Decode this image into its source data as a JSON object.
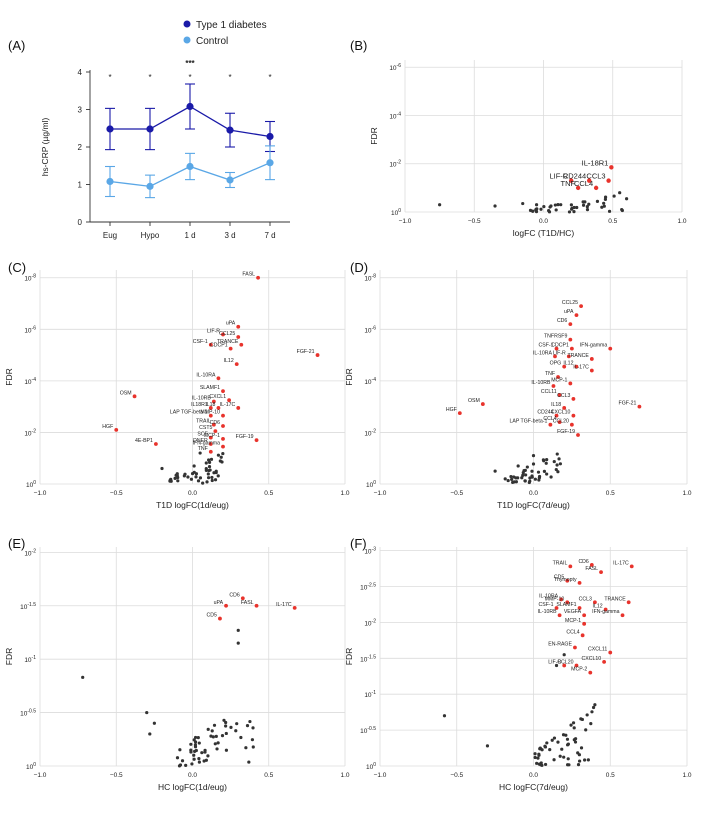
{
  "chart_data": [
    {
      "panel": "(A)",
      "type": "line",
      "ylabel": "hs-CRP (µg/ml)",
      "categories": [
        "Eug",
        "Hypo",
        "1 d",
        "3 d",
        "7 d"
      ],
      "ylim": [
        0,
        4
      ],
      "yticks": [
        "0",
        "1",
        "2",
        "3",
        "4"
      ],
      "series": [
        {
          "name": "Type 1 diabetes",
          "color": "#1a1aa8",
          "values": [
            2.48,
            2.48,
            3.08,
            2.45,
            2.28
          ],
          "err": [
            0.55,
            0.55,
            0.6,
            0.45,
            0.4
          ]
        },
        {
          "name": "Control",
          "color": "#5aa7e6",
          "values": [
            1.08,
            0.95,
            1.48,
            1.12,
            1.58
          ],
          "err": [
            0.4,
            0.3,
            0.35,
            0.2,
            0.45
          ]
        }
      ],
      "significance": [
        {
          "category": "1 d",
          "text": "***",
          "color": "#1a1aa8"
        }
      ],
      "star_markers": [
        "*",
        "*",
        "*",
        "*",
        "*"
      ]
    },
    {
      "panel": "(B)",
      "type": "scatter",
      "xlabel": "logFC (T1D/HC)",
      "ylabel": "FDR",
      "xlim": [
        -1.0,
        1.0
      ],
      "xticks": [
        "−1.0",
        "−0.5",
        "0.0",
        "0.5",
        "1.0"
      ],
      "yexp": [
        0,
        -6
      ],
      "yticks": [
        {
          "pos": 0,
          "base": "10",
          "exp": "0"
        },
        {
          "pos": -2,
          "base": "10",
          "exp": "-2"
        },
        {
          "pos": -4,
          "base": "10",
          "exp": "-4"
        },
        {
          "pos": -6,
          "base": "10",
          "exp": "-6"
        }
      ],
      "labeled": [
        {
          "label": "IL-18R1",
          "x": 0.49,
          "y": -1.85
        },
        {
          "label": "LIF-R",
          "x": 0.2,
          "y": -1.3
        },
        {
          "label": "CD244",
          "x": 0.33,
          "y": -1.3
        },
        {
          "label": "CCL3",
          "x": 0.47,
          "y": -1.3
        },
        {
          "label": "TNF",
          "x": 0.25,
          "y": -1.0
        },
        {
          "label": "CCL4",
          "x": 0.38,
          "y": -1.0
        }
      ]
    },
    {
      "panel": "(C)",
      "type": "scatter",
      "xlabel": "T1D logFC(1d/eug)",
      "ylabel": "FDR",
      "xlim": [
        -1.0,
        1.0
      ],
      "xticks": [
        "−1.0",
        "−0.5",
        "0.0",
        "0.5",
        "1.0"
      ],
      "yticks": [
        {
          "pos": 0,
          "base": "10",
          "exp": "0"
        },
        {
          "pos": -2,
          "base": "10",
          "exp": "-2"
        },
        {
          "pos": -4,
          "base": "10",
          "exp": "-4"
        },
        {
          "pos": -6,
          "base": "10",
          "exp": "-6"
        },
        {
          "pos": -8,
          "base": "10",
          "exp": "-8"
        }
      ],
      "labeled": [
        {
          "label": "FASL",
          "x": 0.43,
          "y": -8.0
        },
        {
          "label": "uPA",
          "x": 0.3,
          "y": -6.1
        },
        {
          "label": "LIF-R",
          "x": 0.2,
          "y": -5.8
        },
        {
          "label": "CCL25",
          "x": 0.3,
          "y": -5.7
        },
        {
          "label": "CSF-1",
          "x": 0.12,
          "y": -5.4
        },
        {
          "label": "TRANCE",
          "x": 0.32,
          "y": -5.4
        },
        {
          "label": "CDCP1",
          "x": 0.25,
          "y": -5.25
        },
        {
          "label": "FGF-21",
          "x": 0.82,
          "y": -5.0
        },
        {
          "label": "IL12",
          "x": 0.29,
          "y": -4.65
        },
        {
          "label": "IL-10RA",
          "x": 0.17,
          "y": -4.1
        },
        {
          "label": "SLAMF1",
          "x": 0.2,
          "y": -3.6
        },
        {
          "label": "IL-10RB",
          "x": 0.14,
          "y": -3.2
        },
        {
          "label": "CXCL1",
          "x": 0.24,
          "y": -3.25
        },
        {
          "label": "IL18R1",
          "x": 0.12,
          "y": -2.95
        },
        {
          "label": "IL18",
          "x": 0.17,
          "y": -2.95
        },
        {
          "label": "IL-17C",
          "x": 0.3,
          "y": -2.95
        },
        {
          "label": "LAP TGF-beta-1",
          "x": 0.12,
          "y": -2.65
        },
        {
          "label": "MMP-10",
          "x": 0.2,
          "y": -2.65
        },
        {
          "label": "OSM",
          "x": -0.38,
          "y": -3.4
        },
        {
          "label": "TRAIL",
          "x": 0.14,
          "y": -2.3
        },
        {
          "label": "CD6",
          "x": 0.2,
          "y": -2.25
        },
        {
          "label": "CST5",
          "x": 0.15,
          "y": -2.05
        },
        {
          "label": "HGF",
          "x": -0.5,
          "y": -2.1
        },
        {
          "label": "SCF",
          "x": 0.12,
          "y": -1.8
        },
        {
          "label": "MCP-1",
          "x": 0.2,
          "y": -1.75
        },
        {
          "label": "FGF-19",
          "x": 0.42,
          "y": -1.7
        },
        {
          "label": "4E-BP1",
          "x": -0.24,
          "y": -1.55
        },
        {
          "label": "DNER",
          "x": 0.12,
          "y": -1.55
        },
        {
          "label": "IFN-gamma",
          "x": 0.2,
          "y": -1.45
        },
        {
          "label": "TNF",
          "x": 0.12,
          "y": -1.25
        }
      ]
    },
    {
      "panel": "(D)",
      "type": "scatter",
      "xlabel": "T1D logFC(7d/eug)",
      "ylabel": "FDR",
      "xlim": [
        -1.0,
        1.0
      ],
      "xticks": [
        "−1.0",
        "−0.5",
        "0.0",
        "0.5",
        "1.0"
      ],
      "yticks": [
        {
          "pos": 0,
          "base": "10",
          "exp": "0"
        },
        {
          "pos": -2,
          "base": "10",
          "exp": "-2"
        },
        {
          "pos": -4,
          "base": "10",
          "exp": "-4"
        },
        {
          "pos": -6,
          "base": "10",
          "exp": "-6"
        },
        {
          "pos": -8,
          "base": "10",
          "exp": "-8"
        }
      ],
      "labeled": [
        {
          "label": "CCL25",
          "x": 0.31,
          "y": -6.9
        },
        {
          "label": "uPA",
          "x": 0.28,
          "y": -6.55
        },
        {
          "label": "CD6",
          "x": 0.24,
          "y": -6.2
        },
        {
          "label": "TNFRSF9",
          "x": 0.24,
          "y": -5.6
        },
        {
          "label": "CSF-1",
          "x": 0.15,
          "y": -5.25
        },
        {
          "label": "CDCP1",
          "x": 0.25,
          "y": -5.25
        },
        {
          "label": "IFN-gamma",
          "x": 0.5,
          "y": -5.25
        },
        {
          "label": "IL-10RA",
          "x": 0.14,
          "y": -4.95
        },
        {
          "label": "LIF-R",
          "x": 0.23,
          "y": -4.95
        },
        {
          "label": "TRANCE",
          "x": 0.38,
          "y": -4.85
        },
        {
          "label": "OPG",
          "x": 0.2,
          "y": -4.55
        },
        {
          "label": "IL12",
          "x": 0.28,
          "y": -4.55
        },
        {
          "label": "IL-17C",
          "x": 0.38,
          "y": -4.4
        },
        {
          "label": "TNF",
          "x": 0.16,
          "y": -4.15
        },
        {
          "label": "MCP-1",
          "x": 0.24,
          "y": -3.9
        },
        {
          "label": "IL-10RB",
          "x": 0.13,
          "y": -3.8
        },
        {
          "label": "CCL11",
          "x": 0.17,
          "y": -3.45
        },
        {
          "label": "CCL3",
          "x": 0.26,
          "y": -3.3
        },
        {
          "label": "FGF-21",
          "x": 0.69,
          "y": -3.0
        },
        {
          "label": "OSM",
          "x": -0.33,
          "y": -3.1
        },
        {
          "label": "IL18",
          "x": 0.2,
          "y": -2.95
        },
        {
          "label": "HGF",
          "x": -0.48,
          "y": -2.75
        },
        {
          "label": "CD244",
          "x": 0.15,
          "y": -2.65
        },
        {
          "label": "CXCL10",
          "x": 0.26,
          "y": -2.65
        },
        {
          "label": "CCL4",
          "x": 0.17,
          "y": -2.4
        },
        {
          "label": "LAP TGF-beta-1",
          "x": 0.11,
          "y": -2.3
        },
        {
          "label": "CCL20",
          "x": 0.25,
          "y": -2.3
        },
        {
          "label": "FGF-19",
          "x": 0.29,
          "y": -1.9
        }
      ]
    },
    {
      "panel": "(E)",
      "type": "scatter",
      "xlabel": "HC logFC(1d/eug)",
      "ylabel": "FDR",
      "xlim": [
        -1.0,
        1.0
      ],
      "xticks": [
        "−1.0",
        "−0.5",
        "0.0",
        "0.5",
        "1.0"
      ],
      "yticks": [
        {
          "pos": 0,
          "base": "10",
          "exp": "0"
        },
        {
          "pos": -0.5,
          "base": "10",
          "exp": "-0.5"
        },
        {
          "pos": -1,
          "base": "10",
          "exp": "-1"
        },
        {
          "pos": -1.5,
          "base": "10",
          "exp": "-1.5"
        },
        {
          "pos": -2,
          "base": "10",
          "exp": "-2"
        }
      ],
      "labeled": [
        {
          "label": "CD6",
          "x": 0.33,
          "y": -1.57
        },
        {
          "label": "uPA",
          "x": 0.22,
          "y": -1.5
        },
        {
          "label": "FASL",
          "x": 0.42,
          "y": -1.5
        },
        {
          "label": "IL-17C",
          "x": 0.67,
          "y": -1.48
        },
        {
          "label": "CD5",
          "x": 0.18,
          "y": -1.38
        }
      ]
    },
    {
      "panel": "(F)",
      "type": "scatter",
      "xlabel": "HC logFC(7d/eug)",
      "ylabel": "FDR",
      "xlim": [
        -1.0,
        1.0
      ],
      "xticks": [
        "−1.0",
        "−0.5",
        "0.0",
        "0.5",
        "1.0"
      ],
      "yticks": [
        {
          "pos": 0,
          "base": "10",
          "exp": "0"
        },
        {
          "pos": -0.5,
          "base": "10",
          "exp": "-0.5"
        },
        {
          "pos": -1,
          "base": "10",
          "exp": "-1"
        },
        {
          "pos": -1.5,
          "base": "10",
          "exp": "-1.5"
        },
        {
          "pos": -2,
          "base": "10",
          "exp": "-2"
        },
        {
          "pos": -2.5,
          "base": "10",
          "exp": "-2.5"
        },
        {
          "pos": -3,
          "base": "10",
          "exp": "-3"
        }
      ],
      "labeled": [
        {
          "label": "TRAIL",
          "x": 0.24,
          "y": -2.78
        },
        {
          "label": "CD6",
          "x": 0.38,
          "y": -2.8
        },
        {
          "label": "IL-17C",
          "x": 0.64,
          "y": -2.78
        },
        {
          "label": "FASL",
          "x": 0.44,
          "y": -2.7
        },
        {
          "label": "CD5",
          "x": 0.22,
          "y": -2.58
        },
        {
          "label": "Thymopty",
          "x": 0.3,
          "y": -2.55
        },
        {
          "label": "IL-10RA",
          "x": 0.18,
          "y": -2.32
        },
        {
          "label": "MMP-10",
          "x": 0.22,
          "y": -2.28
        },
        {
          "label": "CCL3",
          "x": 0.4,
          "y": -2.28
        },
        {
          "label": "TRANCE",
          "x": 0.62,
          "y": -2.28
        },
        {
          "label": "CSF-1",
          "x": 0.15,
          "y": -2.2
        },
        {
          "label": "SLAMF1",
          "x": 0.3,
          "y": -2.2
        },
        {
          "label": "IL12",
          "x": 0.47,
          "y": -2.18
        },
        {
          "label": "IL-10RB",
          "x": 0.17,
          "y": -2.1
        },
        {
          "label": "VEGFA",
          "x": 0.33,
          "y": -2.1
        },
        {
          "label": "IFN-gamma",
          "x": 0.58,
          "y": -2.1
        },
        {
          "label": "MCP-1",
          "x": 0.33,
          "y": -1.98
        },
        {
          "label": "CCL4",
          "x": 0.32,
          "y": -1.82
        },
        {
          "label": "EN-RAGE",
          "x": 0.27,
          "y": -1.65
        },
        {
          "label": "CXCL11",
          "x": 0.5,
          "y": -1.58
        },
        {
          "label": "CXCL10",
          "x": 0.46,
          "y": -1.45
        },
        {
          "label": "LIF-R",
          "x": 0.2,
          "y": -1.4
        },
        {
          "label": "CCL20",
          "x": 0.28,
          "y": -1.4
        },
        {
          "label": "MCP-2",
          "x": 0.37,
          "y": -1.3
        }
      ]
    }
  ]
}
